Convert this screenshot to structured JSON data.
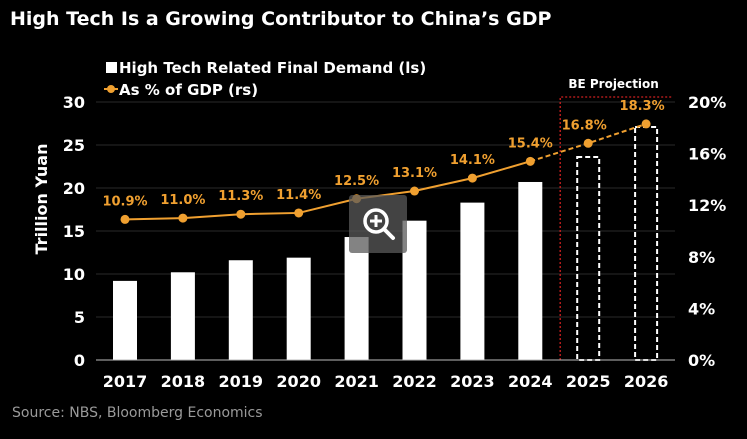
{
  "title": "High Tech Is a Growing Contributor to China’s GDP",
  "source": "Source: NBS, Bloomberg Economics",
  "zoom_icon": "magnifier-plus-icon",
  "chart_data": {
    "type": "bar+line",
    "categories": [
      "2017",
      "2018",
      "2019",
      "2020",
      "2021",
      "2022",
      "2023",
      "2024",
      "2025",
      "2026"
    ],
    "series": [
      {
        "name": "High Tech Related Final Demand (ls)",
        "type": "bar",
        "axis": "left",
        "color": "#ffffff",
        "values": [
          9.2,
          10.2,
          11.6,
          11.9,
          14.3,
          16.2,
          18.3,
          20.7,
          23.6,
          27.1
        ],
        "projected_from": "2025"
      },
      {
        "name": "As % of GDP (rs)",
        "type": "line",
        "axis": "right",
        "color": "#f0a030",
        "values": [
          10.9,
          11.0,
          11.3,
          11.4,
          12.5,
          13.1,
          14.1,
          15.4,
          16.8,
          18.3
        ],
        "labels": [
          "10.9%",
          "11.0%",
          "11.3%",
          "11.4%",
          "12.5%",
          "13.1%",
          "14.1%",
          "15.4%",
          "16.8%",
          "18.3%"
        ],
        "projected_from": "2025"
      }
    ],
    "ylabel": "Trillion Yuan",
    "ylim": [
      0,
      30
    ],
    "yticks": [
      "0",
      "5",
      "10",
      "15",
      "20",
      "25",
      "30"
    ],
    "y2lim": [
      0,
      20
    ],
    "y2ticks": [
      "0%",
      "4%",
      "8%",
      "12%",
      "16%",
      "20%"
    ],
    "annotation": "BE Projection",
    "annotation_color": "#d02020",
    "grid": true,
    "legend_placement": "top-left"
  }
}
